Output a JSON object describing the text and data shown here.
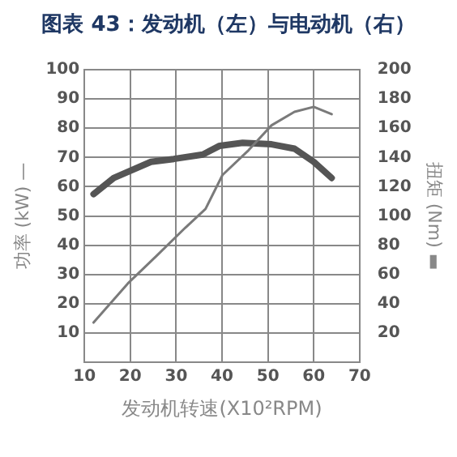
{
  "chart_data": {
    "type": "line",
    "title": "图表 43：发动机（左）与电动机（右）",
    "xlabel": "发动机转速(X10²RPM)",
    "ylabel": "功率 (kW) —",
    "y2label": "扭矩 (Nm) ▬",
    "xlim": [
      10,
      70
    ],
    "xticks": [
      10,
      20,
      30,
      40,
      50,
      60,
      70
    ],
    "ylim": [
      0,
      100
    ],
    "yticks": [
      10,
      20,
      30,
      40,
      50,
      60,
      70,
      80,
      90,
      100
    ],
    "y2lim": [
      0,
      200
    ],
    "y2ticks": [
      20,
      40,
      60,
      80,
      100,
      120,
      140,
      160,
      180,
      200
    ],
    "grid": true,
    "legend": false,
    "marker": "none",
    "line_style": "solid",
    "series": [
      {
        "color": "#7a7a7a",
        "x": [
          12,
          19.5,
          25.8,
          32,
          36.4,
          40.1,
          45.8,
          50.8,
          55.8,
          60,
          63.9
        ],
        "values": [
          13.6,
          27,
          36.5,
          46,
          52.4,
          64,
          72.5,
          81,
          85.6,
          87.3,
          84.8
        ]
      },
      {
        "color": "#555555",
        "axis": "y2",
        "x": [
          12,
          16.4,
          24.5,
          29.5,
          35.8,
          39.5,
          44.5,
          50.8,
          55.8,
          60,
          63.9
        ],
        "values": [
          115,
          126,
          137,
          139,
          142,
          148,
          150,
          149,
          146,
          137,
          126
        ]
      }
    ]
  }
}
